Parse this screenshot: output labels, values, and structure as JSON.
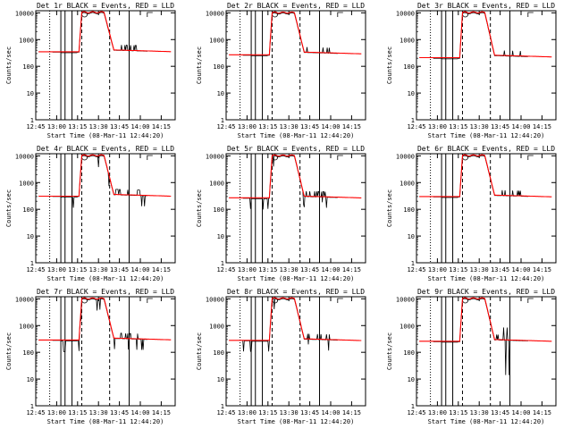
{
  "chart_data": [
    {
      "type": "line",
      "title": "Det 1r BLACK = Events, RED = LLD",
      "xlabel": "Start Time (08-Mar-11 12:44:20)",
      "ylabel": "Counts/sec",
      "xticks": [
        "12:45",
        "13:00",
        "13:15",
        "13:30",
        "13:45",
        "14:00",
        "14:15"
      ],
      "yticks": [
        "1",
        "10",
        "100",
        "1000",
        "10000"
      ],
      "ylim": [
        1,
        12000
      ],
      "yscale": "log",
      "series": [
        {
          "color": "#000000",
          "profile": {
            "base": 340,
            "high": 9800,
            "tail": 400,
            "noise": "low"
          }
        },
        {
          "color": "#ff0000",
          "profile": {
            "base": 350,
            "high": 10500,
            "tail": 410
          }
        }
      ]
    },
    {
      "type": "line",
      "title": "Det 2r BLACK = Events, RED = LLD",
      "xlabel": "Start Time (08-Mar-11 12:44:20)",
      "ylabel": "Counts/sec",
      "xticks": [
        "12:45",
        "13:00",
        "13:15",
        "13:30",
        "13:45",
        "14:00",
        "14:15"
      ],
      "yticks": [
        "1",
        "10",
        "100",
        "1000",
        "10000"
      ],
      "ylim": [
        1,
        12000
      ],
      "yscale": "log",
      "series": [
        {
          "color": "#000000",
          "profile": {
            "base": 260,
            "high": 9500,
            "tail": 330,
            "noise": "low"
          }
        },
        {
          "color": "#ff0000",
          "profile": {
            "base": 270,
            "high": 10200,
            "tail": 340
          }
        }
      ]
    },
    {
      "type": "line",
      "title": "Det 3r BLACK = Events, RED = LLD",
      "xlabel": "Start Time (08-Mar-11 12:44:20)",
      "ylabel": "Counts/sec",
      "xticks": [
        "12:45",
        "13:00",
        "13:15",
        "13:30",
        "13:45",
        "14:00",
        "14:15"
      ],
      "yticks": [
        "1",
        "10",
        "100",
        "1000",
        "10000"
      ],
      "ylim": [
        1,
        12000
      ],
      "yscale": "log",
      "series": [
        {
          "color": "#000000",
          "profile": {
            "base": 200,
            "high": 9700,
            "tail": 250,
            "noise": "low"
          }
        },
        {
          "color": "#ff0000",
          "profile": {
            "base": 210,
            "high": 10400,
            "tail": 260
          }
        }
      ]
    },
    {
      "type": "line",
      "title": "Det 4r BLACK = Events, RED = LLD",
      "xlabel": "Start Time (08-Mar-11 12:44:20)",
      "ylabel": "Counts/sec",
      "xticks": [
        "12:45",
        "13:00",
        "13:15",
        "13:30",
        "13:45",
        "14:00",
        "14:15"
      ],
      "yticks": [
        "1",
        "10",
        "100",
        "1000",
        "10000"
      ],
      "ylim": [
        1,
        12000
      ],
      "yscale": "log",
      "series": [
        {
          "color": "#000000",
          "profile": {
            "base": 300,
            "high": 9700,
            "tail": 350,
            "noise": "medium"
          }
        },
        {
          "color": "#ff0000",
          "profile": {
            "base": 310,
            "high": 10400,
            "tail": 360
          }
        }
      ]
    },
    {
      "type": "line",
      "title": "Det 5r BLACK = Events, RED = LLD",
      "xlabel": "Start Time (08-Mar-11 12:44:20)",
      "ylabel": "Counts/sec",
      "xticks": [
        "12:45",
        "13:00",
        "13:15",
        "13:30",
        "13:45",
        "14:00",
        "14:15"
      ],
      "yticks": [
        "1",
        "10",
        "100",
        "1000",
        "10000"
      ],
      "ylim": [
        1,
        12000
      ],
      "yscale": "log",
      "series": [
        {
          "color": "#000000",
          "profile": {
            "base": 260,
            "high": 9600,
            "tail": 300,
            "noise": "medium"
          }
        },
        {
          "color": "#ff0000",
          "profile": {
            "base": 270,
            "high": 10300,
            "tail": 310
          }
        }
      ]
    },
    {
      "type": "line",
      "title": "Det 6r BLACK = Events, RED = LLD",
      "xlabel": "Start Time (08-Mar-11 12:44:20)",
      "ylabel": "Counts/sec",
      "xticks": [
        "12:45",
        "13:00",
        "13:15",
        "13:30",
        "13:45",
        "14:00",
        "14:15"
      ],
      "yticks": [
        "1",
        "10",
        "100",
        "1000",
        "10000"
      ],
      "ylim": [
        1,
        12000
      ],
      "yscale": "log",
      "series": [
        {
          "color": "#000000",
          "profile": {
            "base": 290,
            "high": 9700,
            "tail": 330,
            "noise": "low"
          }
        },
        {
          "color": "#ff0000",
          "profile": {
            "base": 300,
            "high": 10400,
            "tail": 340
          }
        }
      ]
    },
    {
      "type": "line",
      "title": "Det 7r BLACK = Events, RED = LLD",
      "xlabel": "Start Time (08-Mar-11 12:44:20)",
      "ylabel": "Counts/sec",
      "xticks": [
        "12:45",
        "13:00",
        "13:15",
        "13:30",
        "13:45",
        "14:00",
        "14:15"
      ],
      "yticks": [
        "1",
        "10",
        "100",
        "1000",
        "10000"
      ],
      "ylim": [
        1,
        12000
      ],
      "yscale": "log",
      "series": [
        {
          "color": "#000000",
          "profile": {
            "base": 280,
            "high": 9600,
            "tail": 330,
            "noise": "medium"
          }
        },
        {
          "color": "#ff0000",
          "profile": {
            "base": 290,
            "high": 10300,
            "tail": 340
          }
        }
      ]
    },
    {
      "type": "line",
      "title": "Det 8r BLACK = Events, RED = LLD",
      "xlabel": "Start Time (08-Mar-11 12:44:20)",
      "ylabel": "Counts/sec",
      "xticks": [
        "12:45",
        "13:00",
        "13:15",
        "13:30",
        "13:45",
        "14:00",
        "14:15"
      ],
      "yticks": [
        "1",
        "10",
        "100",
        "1000",
        "10000"
      ],
      "ylim": [
        1,
        12000
      ],
      "yscale": "log",
      "series": [
        {
          "color": "#000000",
          "profile": {
            "base": 270,
            "high": 9700,
            "tail": 310,
            "noise": "medium"
          }
        },
        {
          "color": "#ff0000",
          "profile": {
            "base": 280,
            "high": 10400,
            "tail": 320
          }
        }
      ]
    },
    {
      "type": "line",
      "title": "Det 9r BLACK = Events, RED = LLD",
      "xlabel": "Start Time (08-Mar-11 12:44:20)",
      "ylabel": "Counts/sec",
      "xticks": [
        "12:45",
        "13:00",
        "13:15",
        "13:30",
        "13:45",
        "14:00",
        "14:15"
      ],
      "yticks": [
        "1",
        "10",
        "100",
        "1000",
        "10000"
      ],
      "ylim": [
        1,
        12000
      ],
      "yscale": "log",
      "series": [
        {
          "color": "#000000",
          "profile": {
            "base": 250,
            "high": 9700,
            "tail": 290,
            "noise": "spiky"
          }
        },
        {
          "color": "#ff0000",
          "profile": {
            "base": 260,
            "high": 10400,
            "tail": 300
          }
        }
      ]
    }
  ]
}
